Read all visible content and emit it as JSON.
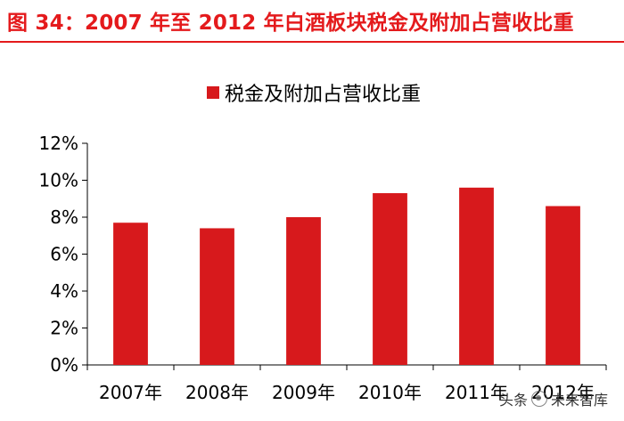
{
  "title": "图 34：2007 年至 2012 年白酒板块税金及附加占营收比重",
  "colors": {
    "title": "#e41a1c",
    "bar": "#d7191c",
    "axis": "#000000"
  },
  "chart_data": {
    "type": "bar",
    "categories": [
      "2007年",
      "2008年",
      "2009年",
      "2010年",
      "2011年",
      "2012年"
    ],
    "series": [
      {
        "name": "税金及附加占营收比重",
        "values": [
          7.7,
          7.4,
          8.0,
          9.3,
          9.6,
          8.6
        ]
      }
    ],
    "ylim": [
      0,
      12
    ],
    "yticks": [
      0,
      2,
      4,
      6,
      8,
      10,
      12
    ],
    "ytick_labels": [
      "0%",
      "2%",
      "4%",
      "6%",
      "8%",
      "10%",
      "12%"
    ],
    "unit": "%",
    "grid": false,
    "legend": "top-center"
  },
  "watermark": {
    "prefix": "头条",
    "suffix": "未来智库"
  }
}
